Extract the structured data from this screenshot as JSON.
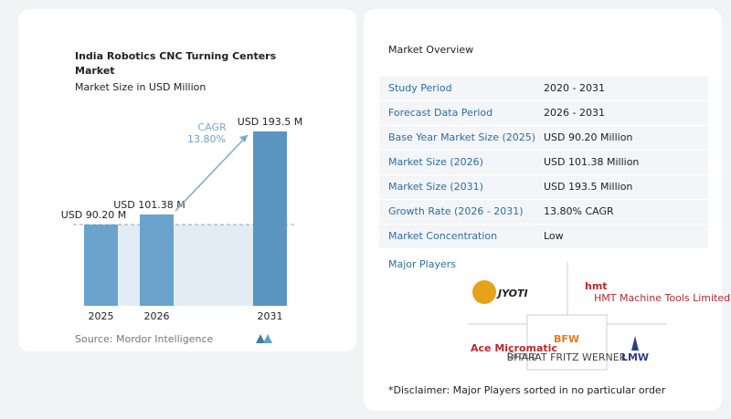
{
  "chart_data": {
    "type": "bar",
    "title": "India Robotics CNC Turning Centers Market",
    "subtitle": "Market Size in USD Million",
    "categories": [
      "2025",
      "2026",
      "2031"
    ],
    "values": [
      90.2,
      101.38,
      193.5
    ],
    "value_labels": [
      "USD 90.20 M",
      "USD 101.38 M",
      "USD 193.5 M"
    ],
    "color": "#6aa3cc",
    "annotations": {
      "cagr_label": "CAGR",
      "cagr_value": "13.80%"
    },
    "source": "Source:  Mordor Intelligence"
  },
  "overview": {
    "title": "Market Overview",
    "rows": [
      [
        "Study Period",
        "2020 - 2031"
      ],
      [
        "Forecast Data Period",
        "2026 - 2031"
      ],
      [
        "Base Year Market Size (2025)",
        "USD 90.20 Million"
      ],
      [
        "Market Size (2026)",
        "USD 101.38 Million"
      ],
      [
        "Market Size (2031)",
        "USD 193.5 Million"
      ],
      [
        "Growth Rate (2026 - 2031)",
        "13.80% CAGR"
      ],
      [
        "Market Concentration",
        "Low"
      ]
    ],
    "players_title": "Major Players",
    "players": [
      {
        "name": "JYOTI"
      },
      {
        "name": "hmt",
        "sub": "HMT Machine Tools Limited"
      },
      {
        "name": "Ace Micromatic",
        "sub": "Group"
      },
      {
        "name": "BFW",
        "sub": "BHARAT FRITZ WERNER"
      },
      {
        "name": "LMW"
      }
    ],
    "disclaimer": "*Disclaimer: Major Players sorted in no particular order"
  }
}
